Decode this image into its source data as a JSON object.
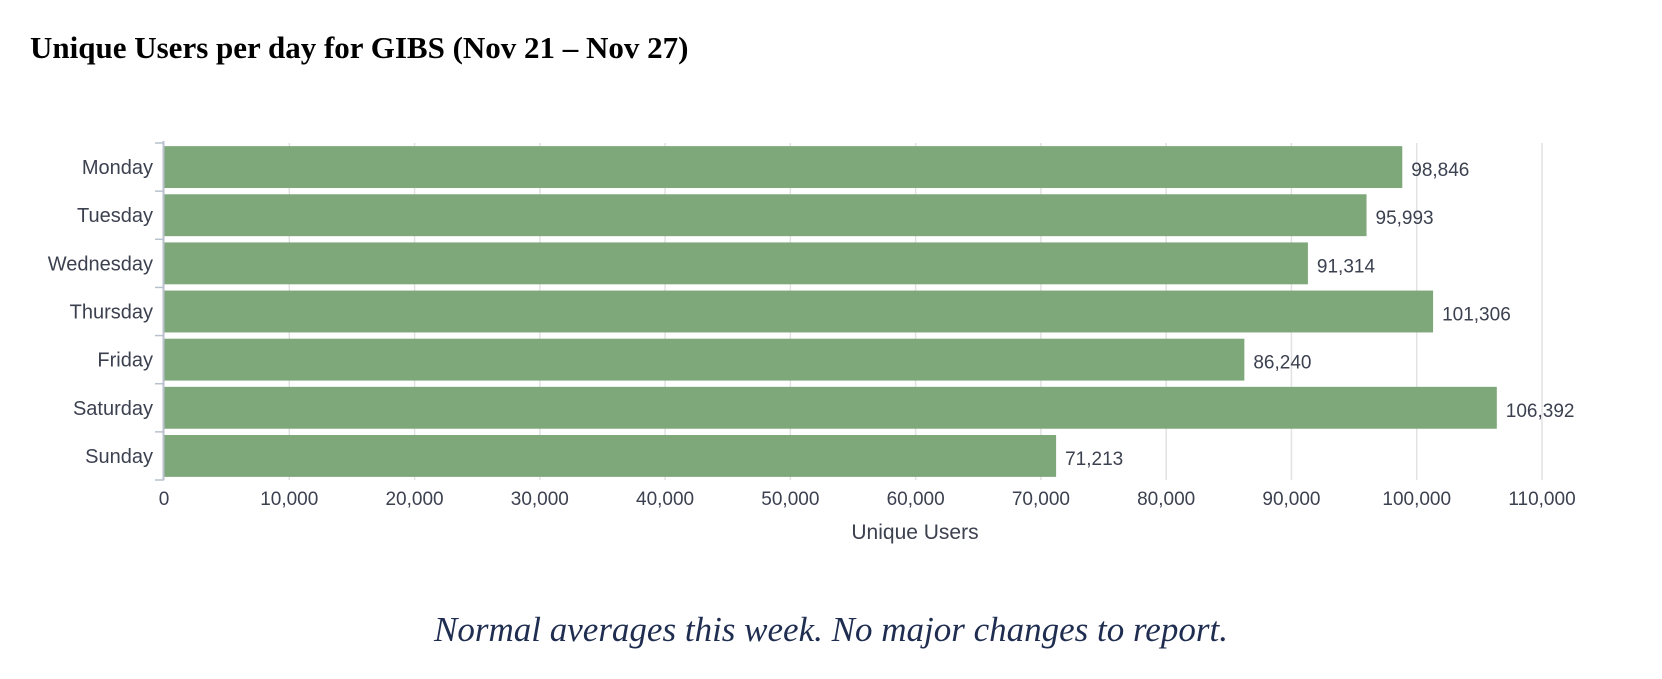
{
  "page": {
    "title": "Unique Users per day for GIBS (Nov 21 – Nov 27)",
    "footer_note": "Normal averages this week.  No major changes to report."
  },
  "chart_data": {
    "type": "bar",
    "orientation": "horizontal",
    "categories": [
      "Monday",
      "Tuesday",
      "Wednesday",
      "Thursday",
      "Friday",
      "Saturday",
      "Sunday"
    ],
    "values": [
      98846,
      95993,
      91314,
      101306,
      86240,
      106392,
      71213
    ],
    "value_labels": [
      "98,846",
      "95,993",
      "91,314",
      "101,306",
      "86,240",
      "106,392",
      "71,213"
    ],
    "xlabel": "Unique Users",
    "ylabel": "",
    "xlim": [
      0,
      110000
    ],
    "x_ticks": [
      0,
      10000,
      20000,
      30000,
      40000,
      50000,
      60000,
      70000,
      80000,
      90000,
      100000,
      110000
    ],
    "x_tick_labels": [
      "0",
      "10,000",
      "20,000",
      "30,000",
      "40,000",
      "50,000",
      "60,000",
      "70,000",
      "80,000",
      "90,000",
      "100,000",
      "110,000"
    ],
    "grid": true,
    "legend": "none",
    "colors": {
      "bar": "#7ea77a",
      "grid": "#e2e2e2",
      "axis": "#b9c2cc",
      "text": "#3c4150"
    }
  }
}
